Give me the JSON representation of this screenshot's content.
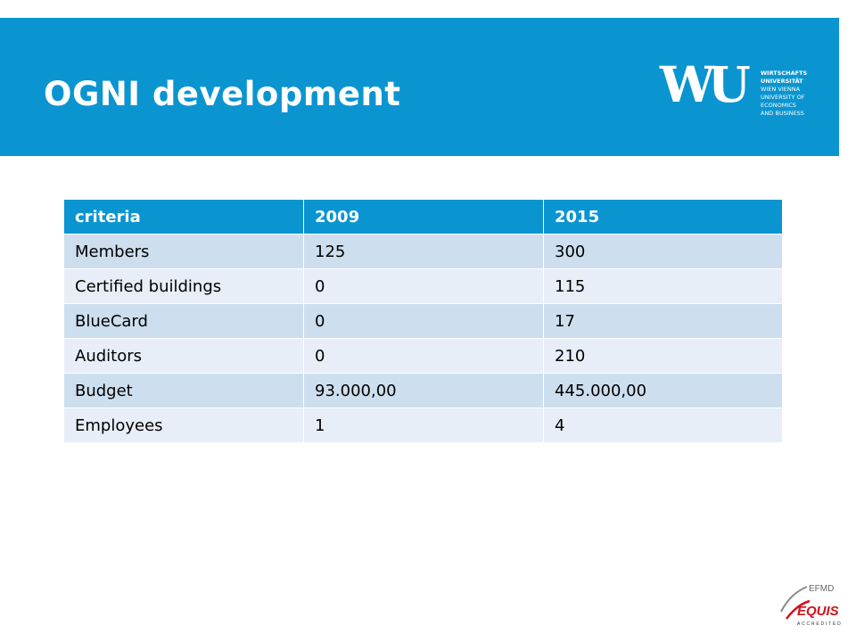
{
  "slide": {
    "title": "OGNI development"
  },
  "logo": {
    "mark": "WU",
    "lines": [
      "WIRTSCHAFTS",
      "UNIVERSITÄT",
      "WIEN VIENNA",
      "UNIVERSITY OF",
      "ECONOMICS",
      "AND BUSINESS"
    ]
  },
  "table": {
    "headers": [
      "criteria",
      "2009",
      "2015"
    ],
    "rows": [
      [
        "Members",
        "125",
        "300"
      ],
      [
        "Certified buildings",
        "0",
        "115"
      ],
      [
        "BlueCard",
        "0",
        "17"
      ],
      [
        "Auditors",
        "0",
        "210"
      ],
      [
        "Budget",
        "93.000,00",
        "445.000,00"
      ],
      [
        "Employees",
        "1",
        "4"
      ]
    ]
  },
  "accreditation": {
    "top": "EFMD",
    "name": "EQUIS",
    "bottom": "ACCREDITED"
  },
  "colors": {
    "brand_blue": "#0a95d1",
    "row_dark": "#cddeee",
    "row_light": "#e7eef7",
    "equis_red": "#d0121b"
  }
}
